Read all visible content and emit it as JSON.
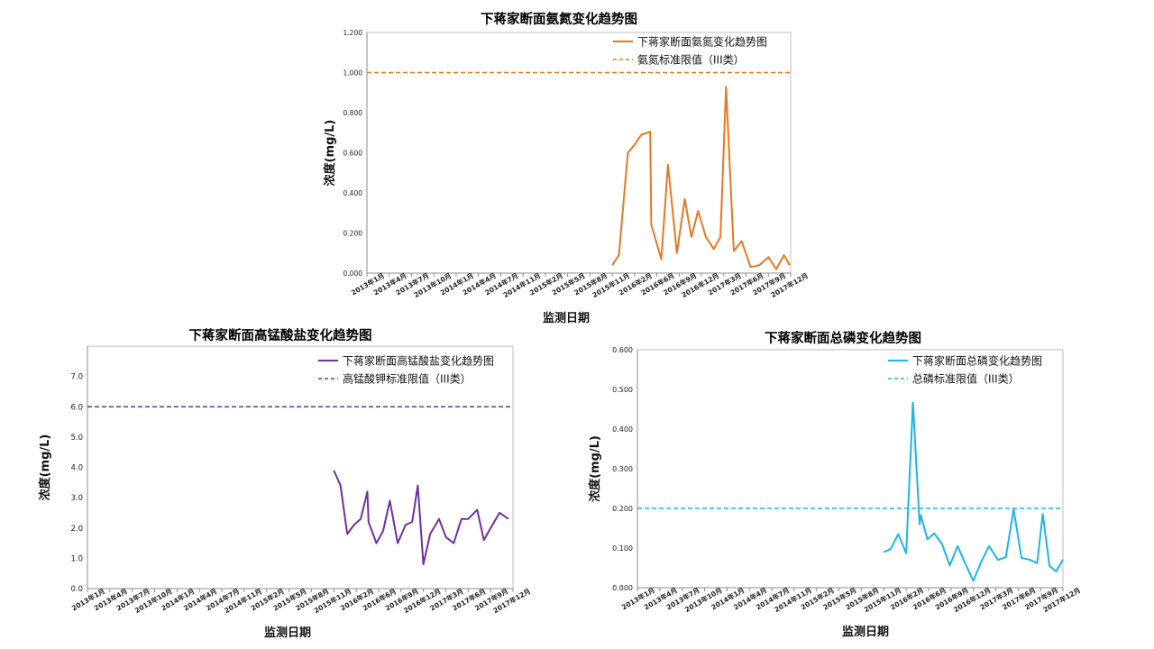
{
  "chart_data": [
    {
      "id": "ammonia",
      "type": "line",
      "title": "下蒋家断面氨氮变化趋势图",
      "xlabel": "监测日期",
      "ylabel": "浓度(mg/L)",
      "ylim": [
        0,
        1.2
      ],
      "yticks": [
        "0.000",
        "0.200",
        "0.400",
        "0.600",
        "0.800",
        "1.000",
        "1.200"
      ],
      "xticks": [
        "2013年1月",
        "2013年4月",
        "2013年7月",
        "2013年10月",
        "2014年1月",
        "2014年4月",
        "2014年7月",
        "2014年11月",
        "2015年2月",
        "2015年5月",
        "2015年8月",
        "2015年11月",
        "2016年2月",
        "2016年6月",
        "2016年9月",
        "2016年12月",
        "2017年3月",
        "2017年6月",
        "2017年9月",
        "2017年12月"
      ],
      "color": "#E87722",
      "standard": {
        "name": "氨氮标准限值（III类）",
        "value": 1.0
      },
      "series": [
        {
          "name": "下蒋家断面氨氮变化趋势图",
          "x": [
            11.0,
            11.3,
            11.7,
            12.0,
            12.3,
            12.7,
            12.75,
            13.2,
            13.5,
            13.9,
            14.25,
            14.55,
            14.85,
            15.2,
            15.55,
            15.85,
            16.1,
            16.45,
            16.8,
            17.2,
            17.6,
            18.0,
            18.35,
            18.7,
            18.95
          ],
          "y": [
            0.04,
            0.09,
            0.6,
            0.64,
            0.69,
            0.705,
            0.24,
            0.07,
            0.54,
            0.1,
            0.37,
            0.18,
            0.31,
            0.18,
            0.12,
            0.18,
            0.93,
            0.11,
            0.16,
            0.03,
            0.04,
            0.08,
            0.02,
            0.09,
            0.04
          ]
        }
      ],
      "legend": "top-right",
      "grid": false
    },
    {
      "id": "permanganate",
      "type": "line",
      "title": "下蒋家断面高锰酸盐变化趋势图",
      "xlabel": "监测日期",
      "ylabel": "浓度(mg/L)",
      "ylim": [
        0,
        8
      ],
      "yticks": [
        "0.0",
        "1.0",
        "2.0",
        "3.0",
        "4.0",
        "5.0",
        "6.0",
        "7.0"
      ],
      "xticks": [
        "2013年1月",
        "2013年4月",
        "2013年7月",
        "2013年10月",
        "2014年1月",
        "2014年4月",
        "2014年7月",
        "2014年11月",
        "2015年2月",
        "2015年5月",
        "2015年8月",
        "2015年11月",
        "2016年2月",
        "2016年6月",
        "2016年9月",
        "2016年12月",
        "2017年3月",
        "2017年6月",
        "2017年9月",
        "2017年12月"
      ],
      "color": "#7030A0",
      "standard": {
        "name": "高锰酸钾标准限值（III类）",
        "value": 6.0
      },
      "series": [
        {
          "name": "下蒋家断面高锰酸盐变化趋势图",
          "x": [
            11.0,
            11.3,
            11.6,
            11.9,
            12.2,
            12.5,
            12.55,
            12.9,
            13.2,
            13.5,
            13.85,
            14.2,
            14.5,
            14.75,
            15.0,
            15.3,
            15.7,
            16.0,
            16.35,
            16.7,
            17.0,
            17.4,
            17.7,
            18.0,
            18.4,
            18.8
          ],
          "y": [
            3.9,
            3.4,
            1.8,
            2.1,
            2.3,
            3.2,
            2.2,
            1.5,
            1.9,
            2.9,
            1.5,
            2.1,
            2.2,
            3.4,
            0.8,
            1.8,
            2.3,
            1.7,
            1.5,
            2.3,
            2.3,
            2.6,
            1.6,
            2.0,
            2.5,
            2.3
          ]
        }
      ],
      "legend": "top-right",
      "grid": false
    },
    {
      "id": "phosphorus",
      "type": "line",
      "title": "下蒋家断面总磷变化趋势图",
      "xlabel": "监测日期",
      "ylabel": "浓度(mg/L)",
      "ylim": [
        0,
        0.6
      ],
      "yticks": [
        "0.000",
        "0.100",
        "0.200",
        "0.300",
        "0.400",
        "0.500",
        "0.600"
      ],
      "xticks": [
        "2013年1月",
        "2013年4月",
        "2013年7月",
        "2013年10月",
        "2014年1月",
        "2014年4月",
        "2014年7月",
        "2014年11月",
        "2015年2月",
        "2015年5月",
        "2015年8月",
        "2015年11月",
        "2016年2月",
        "2016年6月",
        "2016年9月",
        "2016年12月",
        "2017年3月",
        "2017年6月",
        "2017年9月",
        "2017年12月"
      ],
      "color": "#1EB4E8",
      "standard": {
        "name": "总磷标准限值（III类）",
        "value": 0.2
      },
      "series": [
        {
          "name": "下蒋家断面总磷变化趋势图",
          "x": [
            11.0,
            11.3,
            11.65,
            12.0,
            12.3,
            12.6,
            12.65,
            12.95,
            13.25,
            13.6,
            13.95,
            14.3,
            14.65,
            15.0,
            15.35,
            15.7,
            16.1,
            16.45,
            16.8,
            17.15,
            17.5,
            17.85,
            18.1,
            18.4,
            18.7,
            19.0
          ],
          "y": [
            0.09,
            0.097,
            0.135,
            0.087,
            0.467,
            0.16,
            0.183,
            0.122,
            0.137,
            0.11,
            0.056,
            0.105,
            0.06,
            0.017,
            0.065,
            0.105,
            0.07,
            0.077,
            0.198,
            0.075,
            0.071,
            0.062,
            0.186,
            0.055,
            0.041,
            0.071
          ]
        }
      ],
      "legend": "top-right",
      "grid": false
    }
  ]
}
